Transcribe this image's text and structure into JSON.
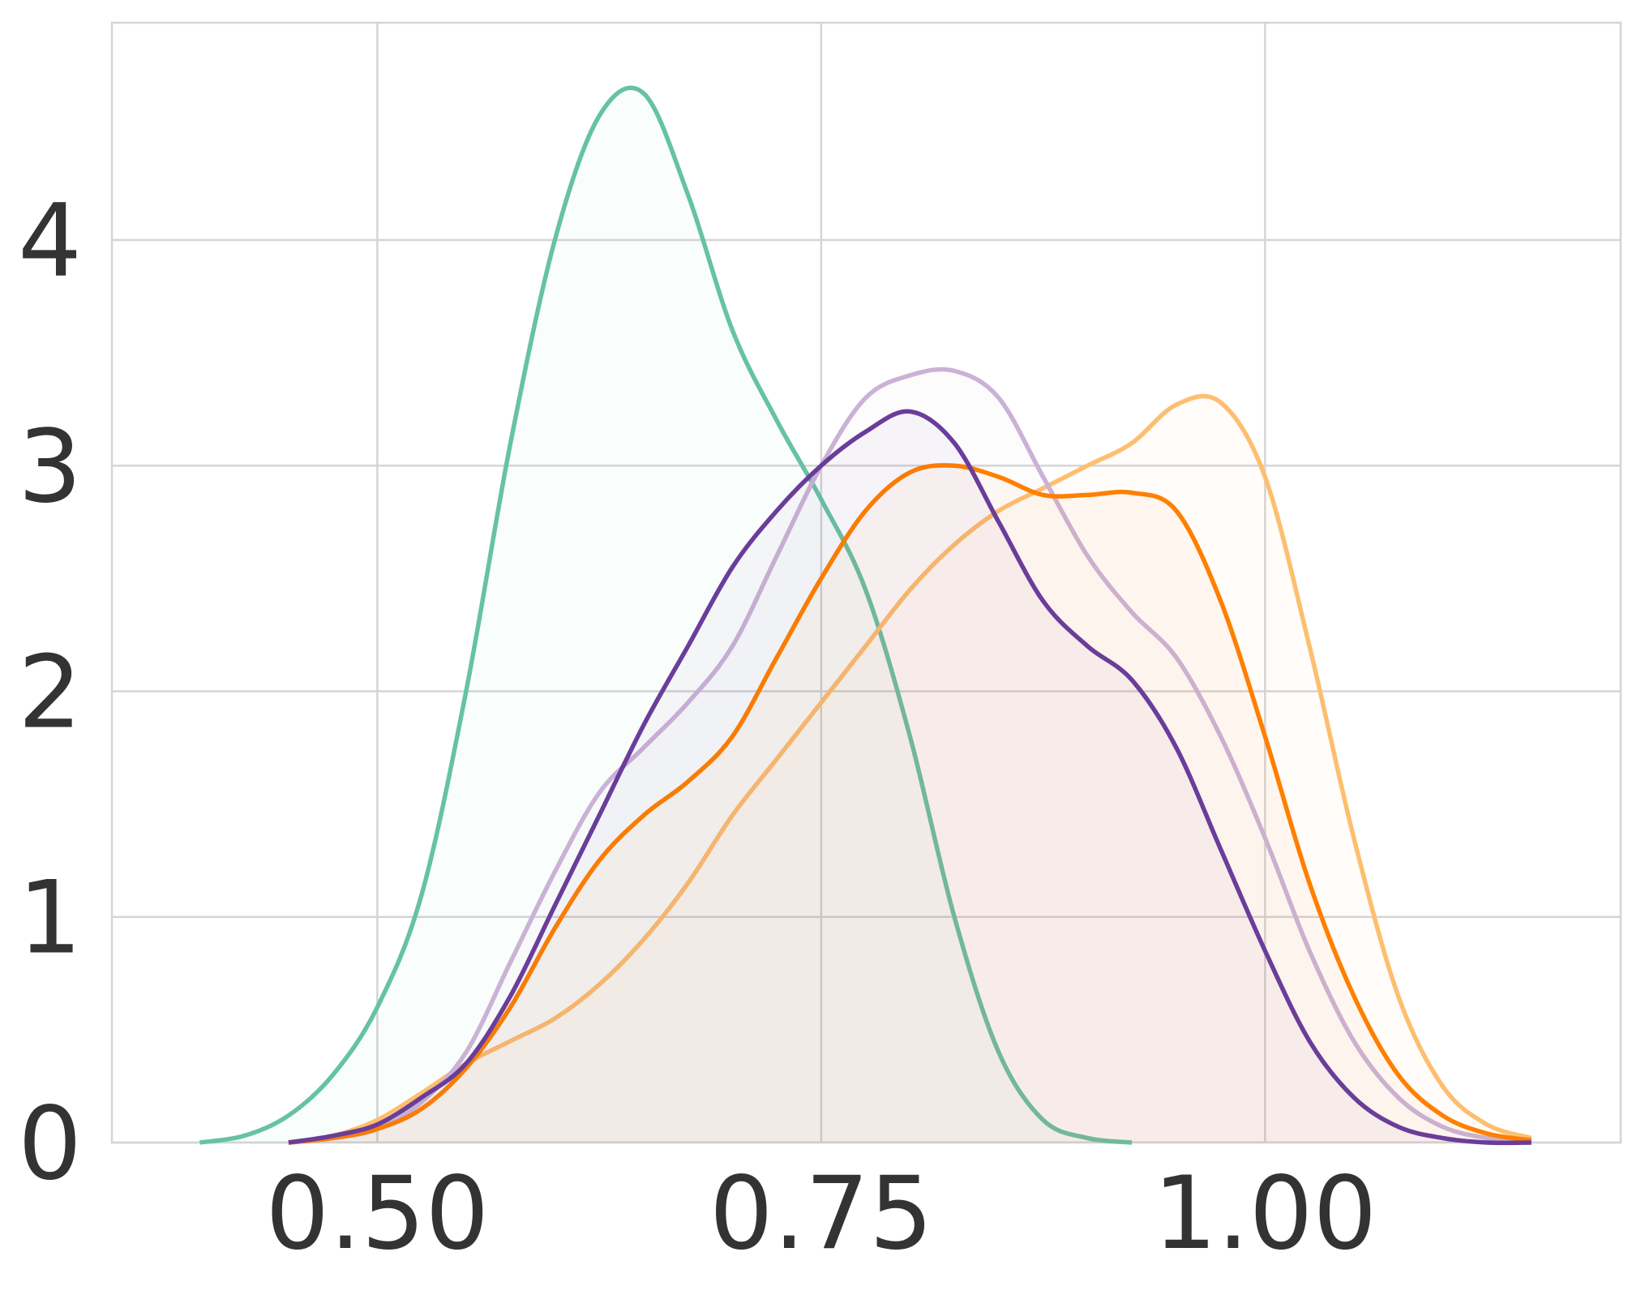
{
  "chart_data": {
    "type": "line",
    "x": [
      0.4,
      0.425,
      0.45,
      0.475,
      0.5,
      0.525,
      0.55,
      0.575,
      0.6,
      0.625,
      0.65,
      0.675,
      0.7,
      0.725,
      0.75,
      0.775,
      0.8,
      0.825,
      0.85,
      0.875,
      0.9,
      0.925,
      0.95,
      0.975,
      1.0,
      1.025,
      1.05,
      1.075,
      1.1,
      1.125,
      1.15
    ],
    "series": [
      {
        "color": "#66c2a5",
        "values": [
          0.0,
          0.03,
          0.12,
          0.3,
          0.6,
          1.1,
          2.0,
          3.1,
          4.0,
          4.55,
          4.65,
          4.2,
          3.6,
          3.2,
          2.85,
          2.45,
          1.8,
          1.0,
          0.4,
          0.1,
          0.02,
          0.0,
          null,
          null,
          null,
          null,
          null,
          null,
          null,
          null,
          null
        ]
      },
      {
        "color": "#fdbf6f",
        "values": [
          null,
          null,
          0.0,
          0.03,
          0.1,
          0.22,
          0.35,
          0.45,
          0.55,
          0.7,
          0.9,
          1.15,
          1.45,
          1.7,
          1.95,
          2.2,
          2.45,
          2.65,
          2.8,
          2.9,
          3.0,
          3.1,
          3.27,
          3.28,
          2.95,
          2.2,
          1.35,
          0.65,
          0.25,
          0.08,
          0.02
        ]
      },
      {
        "color": "#cab2d6",
        "values": [
          null,
          null,
          0.0,
          0.02,
          0.06,
          0.18,
          0.4,
          0.8,
          1.2,
          1.55,
          1.75,
          1.95,
          2.2,
          2.6,
          3.0,
          3.3,
          3.4,
          3.42,
          3.3,
          2.95,
          2.6,
          2.35,
          2.15,
          1.8,
          1.35,
          0.85,
          0.45,
          0.2,
          0.07,
          0.02,
          0.0
        ]
      },
      {
        "color": "#ff7f00",
        "values": [
          null,
          null,
          0.0,
          0.02,
          0.06,
          0.15,
          0.33,
          0.6,
          0.95,
          1.25,
          1.45,
          1.6,
          1.8,
          2.15,
          2.5,
          2.8,
          2.97,
          3.0,
          2.95,
          2.87,
          2.87,
          2.88,
          2.8,
          2.4,
          1.8,
          1.15,
          0.65,
          0.3,
          0.12,
          0.04,
          0.01
        ]
      },
      {
        "color": "#6a3d9a",
        "values": [
          null,
          null,
          0.0,
          0.03,
          0.08,
          0.2,
          0.35,
          0.65,
          1.05,
          1.45,
          1.85,
          2.2,
          2.55,
          2.8,
          3.0,
          3.15,
          3.24,
          3.1,
          2.75,
          2.4,
          2.2,
          2.05,
          1.75,
          1.3,
          0.85,
          0.45,
          0.2,
          0.07,
          0.02,
          0.0,
          0.0
        ]
      }
    ],
    "xlim": [
      0.3505,
      1.2003
    ],
    "ylim": [
      0,
      4.963
    ],
    "xticks": [
      {
        "value": 0.5,
        "label": "0.50"
      },
      {
        "value": 0.75,
        "label": "0.75"
      },
      {
        "value": 1.0,
        "label": "1.00"
      }
    ],
    "yticks": [
      0,
      1,
      2,
      3,
      4
    ],
    "grid": true
  }
}
